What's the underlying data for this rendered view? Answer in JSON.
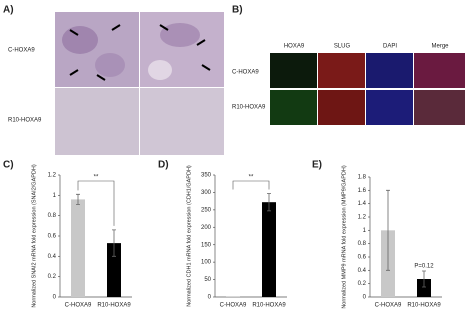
{
  "panel_labels": [
    "A)",
    "B)",
    "C)",
    "D)",
    "E)"
  ],
  "panel_a": {
    "rows": [
      "C-HOXA9",
      "R10-HOXA9"
    ]
  },
  "panel_b": {
    "columns": [
      "HOXA9",
      "SLUG",
      "DAPI",
      "Merge"
    ],
    "rows": [
      "C-HOXA9",
      "R10-HOXA9"
    ]
  },
  "chart_data": [
    {
      "type": "bar",
      "y_label": "Normalized SNAI2 mRNA fold expression (SNAI2/GAPDH)",
      "categories": [
        "C-HOXA9",
        "R10-HOXA9"
      ],
      "values": [
        0.96,
        0.53
      ],
      "errors": [
        0.05,
        0.13
      ],
      "colors": [
        "#c8c8c8",
        "#000000"
      ],
      "ylim": [
        0,
        1.2
      ],
      "yticks": [
        0,
        0.2,
        0.4,
        0.6,
        0.8,
        1,
        1.2
      ],
      "annotation": "**"
    },
    {
      "type": "bar",
      "y_label": "Normalized CDH1 mRNA fold expression (CDH1/GAPDH)",
      "categories": [
        "C-HOXA9",
        "R10-HOXA9"
      ],
      "values": [
        1,
        272
      ],
      "errors": [
        0,
        25
      ],
      "colors": [
        "#c8c8c8",
        "#000000"
      ],
      "ylim": [
        0,
        350
      ],
      "yticks": [
        0,
        50,
        100,
        150,
        200,
        250,
        300,
        350
      ],
      "annotation": "**"
    },
    {
      "type": "bar",
      "y_label": "Normalized MMP9 mRNA fold expression (MMP9/GAPDH)",
      "categories": [
        "C-HOXA9",
        "R10-HOXA9"
      ],
      "values": [
        1,
        0.27
      ],
      "errors": [
        0.6,
        0.12
      ],
      "colors": [
        "#c8c8c8",
        "#000000"
      ],
      "ylim": [
        0,
        1.8
      ],
      "yticks": [
        0,
        0.2,
        0.4,
        0.6,
        0.8,
        1,
        1.2,
        1.4,
        1.6,
        1.8
      ],
      "annotation": "P=0.12"
    }
  ]
}
